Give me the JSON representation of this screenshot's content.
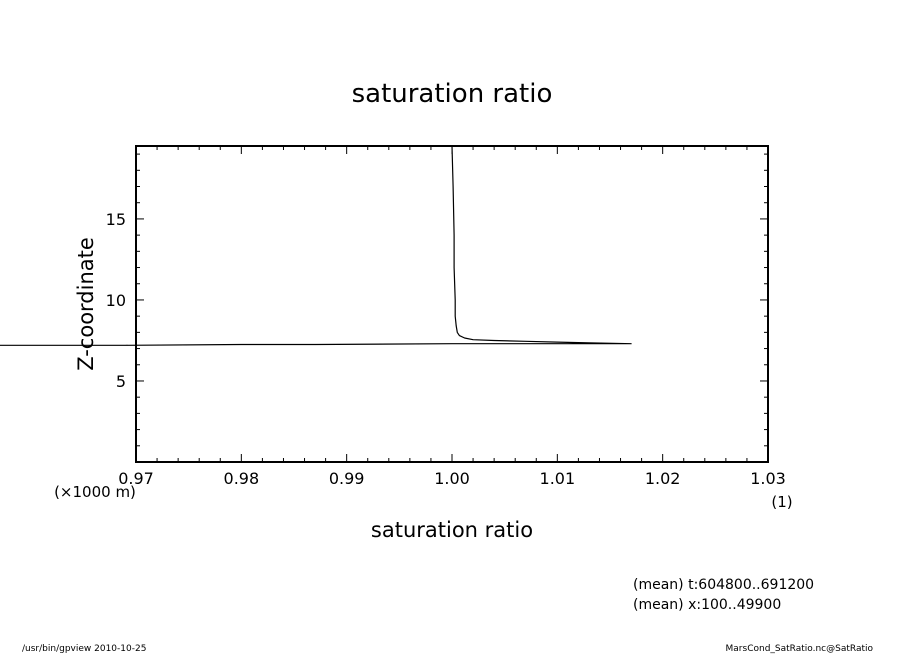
{
  "chart_data": {
    "type": "line",
    "title": "saturation ratio",
    "xlabel": "saturation ratio",
    "x_unit": "(1)",
    "ylabel": "Z-coordinate",
    "y_unit": "(×1000 m)",
    "xlim": [
      0.97,
      1.03
    ],
    "ylim": [
      0,
      19.5
    ],
    "x_ticks": [
      "0.97",
      "0.98",
      "0.99",
      "1.00",
      "1.01",
      "1.02",
      "1.03"
    ],
    "y_ticks": [
      "5",
      "10",
      "15"
    ],
    "grid": false,
    "legend": "none",
    "series": [
      {
        "points": [
          [
            1.0,
            19.5
          ],
          [
            1.0001,
            17
          ],
          [
            1.0002,
            14
          ],
          [
            1.0002,
            12
          ],
          [
            1.0003,
            10
          ],
          [
            1.0003,
            9
          ],
          [
            1.0004,
            8.4
          ],
          [
            1.0005,
            8.0
          ],
          [
            1.0007,
            7.8
          ],
          [
            1.0012,
            7.65
          ],
          [
            1.002,
            7.55
          ],
          [
            1.004,
            7.5
          ],
          [
            1.007,
            7.45
          ],
          [
            1.01,
            7.4
          ],
          [
            1.013,
            7.35
          ],
          [
            1.017,
            7.3
          ],
          [
            1.0,
            7.3
          ],
          [
            0.987,
            7.25
          ],
          [
            0.98,
            7.25
          ],
          [
            0.969,
            7.2
          ],
          [
            0.957,
            7.2
          ]
        ]
      }
    ]
  },
  "annotations": {
    "mean_t": "(mean) t:604800..691200",
    "mean_x": "(mean) x:100..49900"
  },
  "footer": {
    "left": "/usr/bin/gpview   2010-10-25",
    "right": "MarsCond_SatRatio.nc@SatRatio"
  },
  "colors": {
    "line": "#000000",
    "background": "#ffffff"
  }
}
